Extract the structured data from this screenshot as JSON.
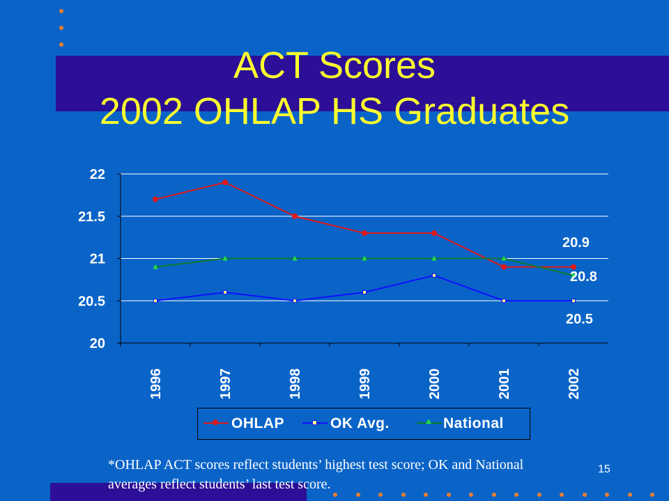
{
  "slide": {
    "title_line1": "ACT Scores",
    "title_line2": "2002 OHLAP HS Graduates",
    "footnote": "*OHLAP ACT scores reflect students’ highest test score; OK and National averages reflect students’ last test score.",
    "page_number": "15"
  },
  "colors": {
    "background": "#0a64c8",
    "band": "#2c0f96",
    "title": "#ffff2e",
    "bullet_dots": "#f07c2c"
  },
  "chart_data": {
    "type": "line",
    "categories": [
      "1996",
      "1997",
      "1998",
      "1999",
      "2000",
      "2001",
      "2002"
    ],
    "ylim": [
      20,
      22
    ],
    "yticks": [
      "20",
      "20.5",
      "21",
      "21.5",
      "22"
    ],
    "grid": true,
    "legend_position": "bottom",
    "series": [
      {
        "name": "OHLAP",
        "color": "#e01818",
        "marker": "diamond",
        "values": [
          21.7,
          21.9,
          21.5,
          21.3,
          21.3,
          20.9,
          20.9
        ]
      },
      {
        "name": "OK Avg.",
        "color": "#1010ff",
        "marker": "square",
        "values": [
          20.5,
          20.6,
          20.5,
          20.6,
          20.8,
          20.5,
          20.5
        ]
      },
      {
        "name": "National",
        "color": "#0a7a2a",
        "marker": "triangle",
        "values": [
          20.9,
          21.0,
          21.0,
          21.0,
          21.0,
          21.0,
          20.8
        ]
      }
    ],
    "annotations": [
      "20.9",
      "20.8",
      "20.5"
    ]
  }
}
